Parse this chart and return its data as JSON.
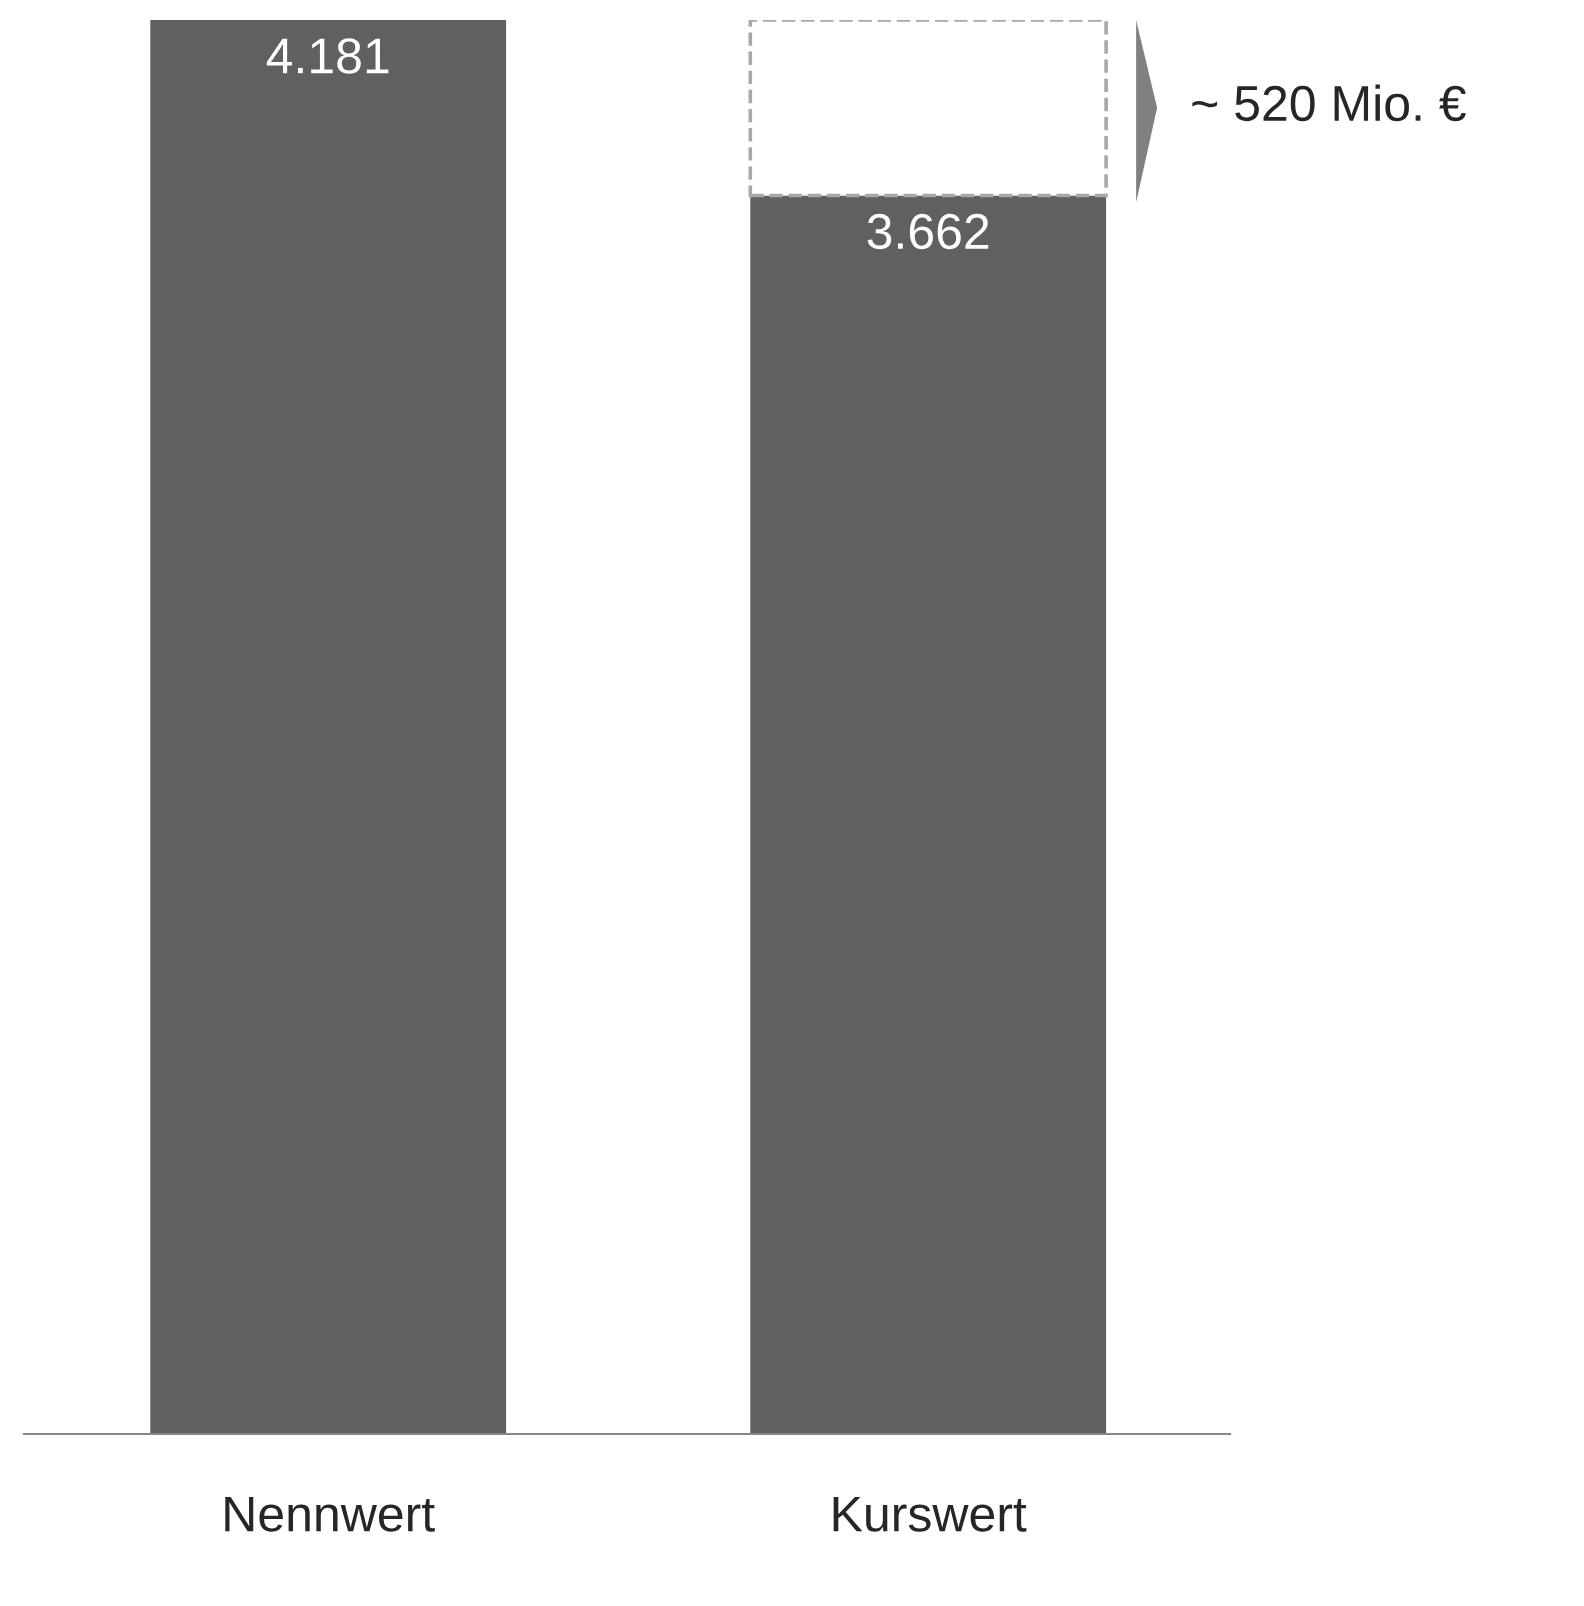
{
  "chart_data": {
    "type": "bar",
    "categories": [
      "Nennwert",
      "Kurswert"
    ],
    "stacked": true,
    "series": [
      {
        "color": "#606060",
        "values": [
          4181,
          3662
        ],
        "value_labels": [
          "4.181",
          "3.662"
        ]
      },
      {
        "color": "#ffffff",
        "values": [
          null,
          519
        ],
        "line_style": "dashed"
      }
    ],
    "annotations": [
      "~ 520 Mio. €"
    ],
    "tick_labels": "x"
  }
}
